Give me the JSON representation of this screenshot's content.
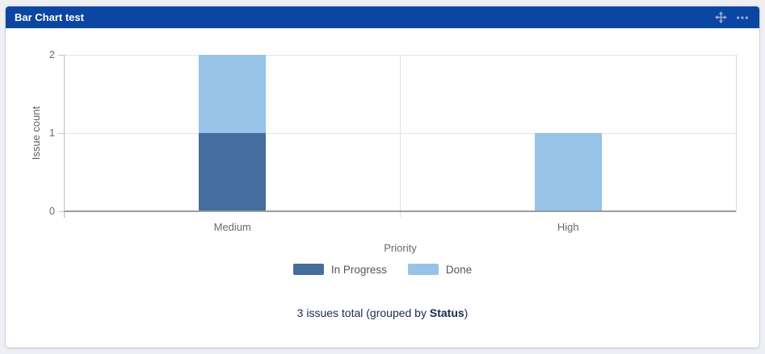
{
  "gadget": {
    "title": "Bar Chart test",
    "header_color": "#0c46a3",
    "icons": [
      {
        "name": "move-icon",
        "meaning": "drag gadget"
      },
      {
        "name": "more-menu-icon",
        "meaning": "gadget menu"
      }
    ]
  },
  "chart_data": {
    "type": "bar",
    "stacked": true,
    "categories": [
      "Medium",
      "High"
    ],
    "series": [
      {
        "name": "In Progress",
        "color": "#456d9e",
        "values": [
          1,
          0
        ]
      },
      {
        "name": "Done",
        "color": "#96c3e6",
        "values": [
          1,
          1
        ]
      }
    ],
    "xlabel": "Priority",
    "ylabel": "Issue count",
    "y_ticks": [
      0,
      1,
      2
    ],
    "ylim": [
      0,
      2
    ],
    "grid": true,
    "legend_position": "bottom"
  },
  "footer": {
    "text_before": "3 issues total (grouped by ",
    "group_by": "Status",
    "text_after": ")"
  }
}
